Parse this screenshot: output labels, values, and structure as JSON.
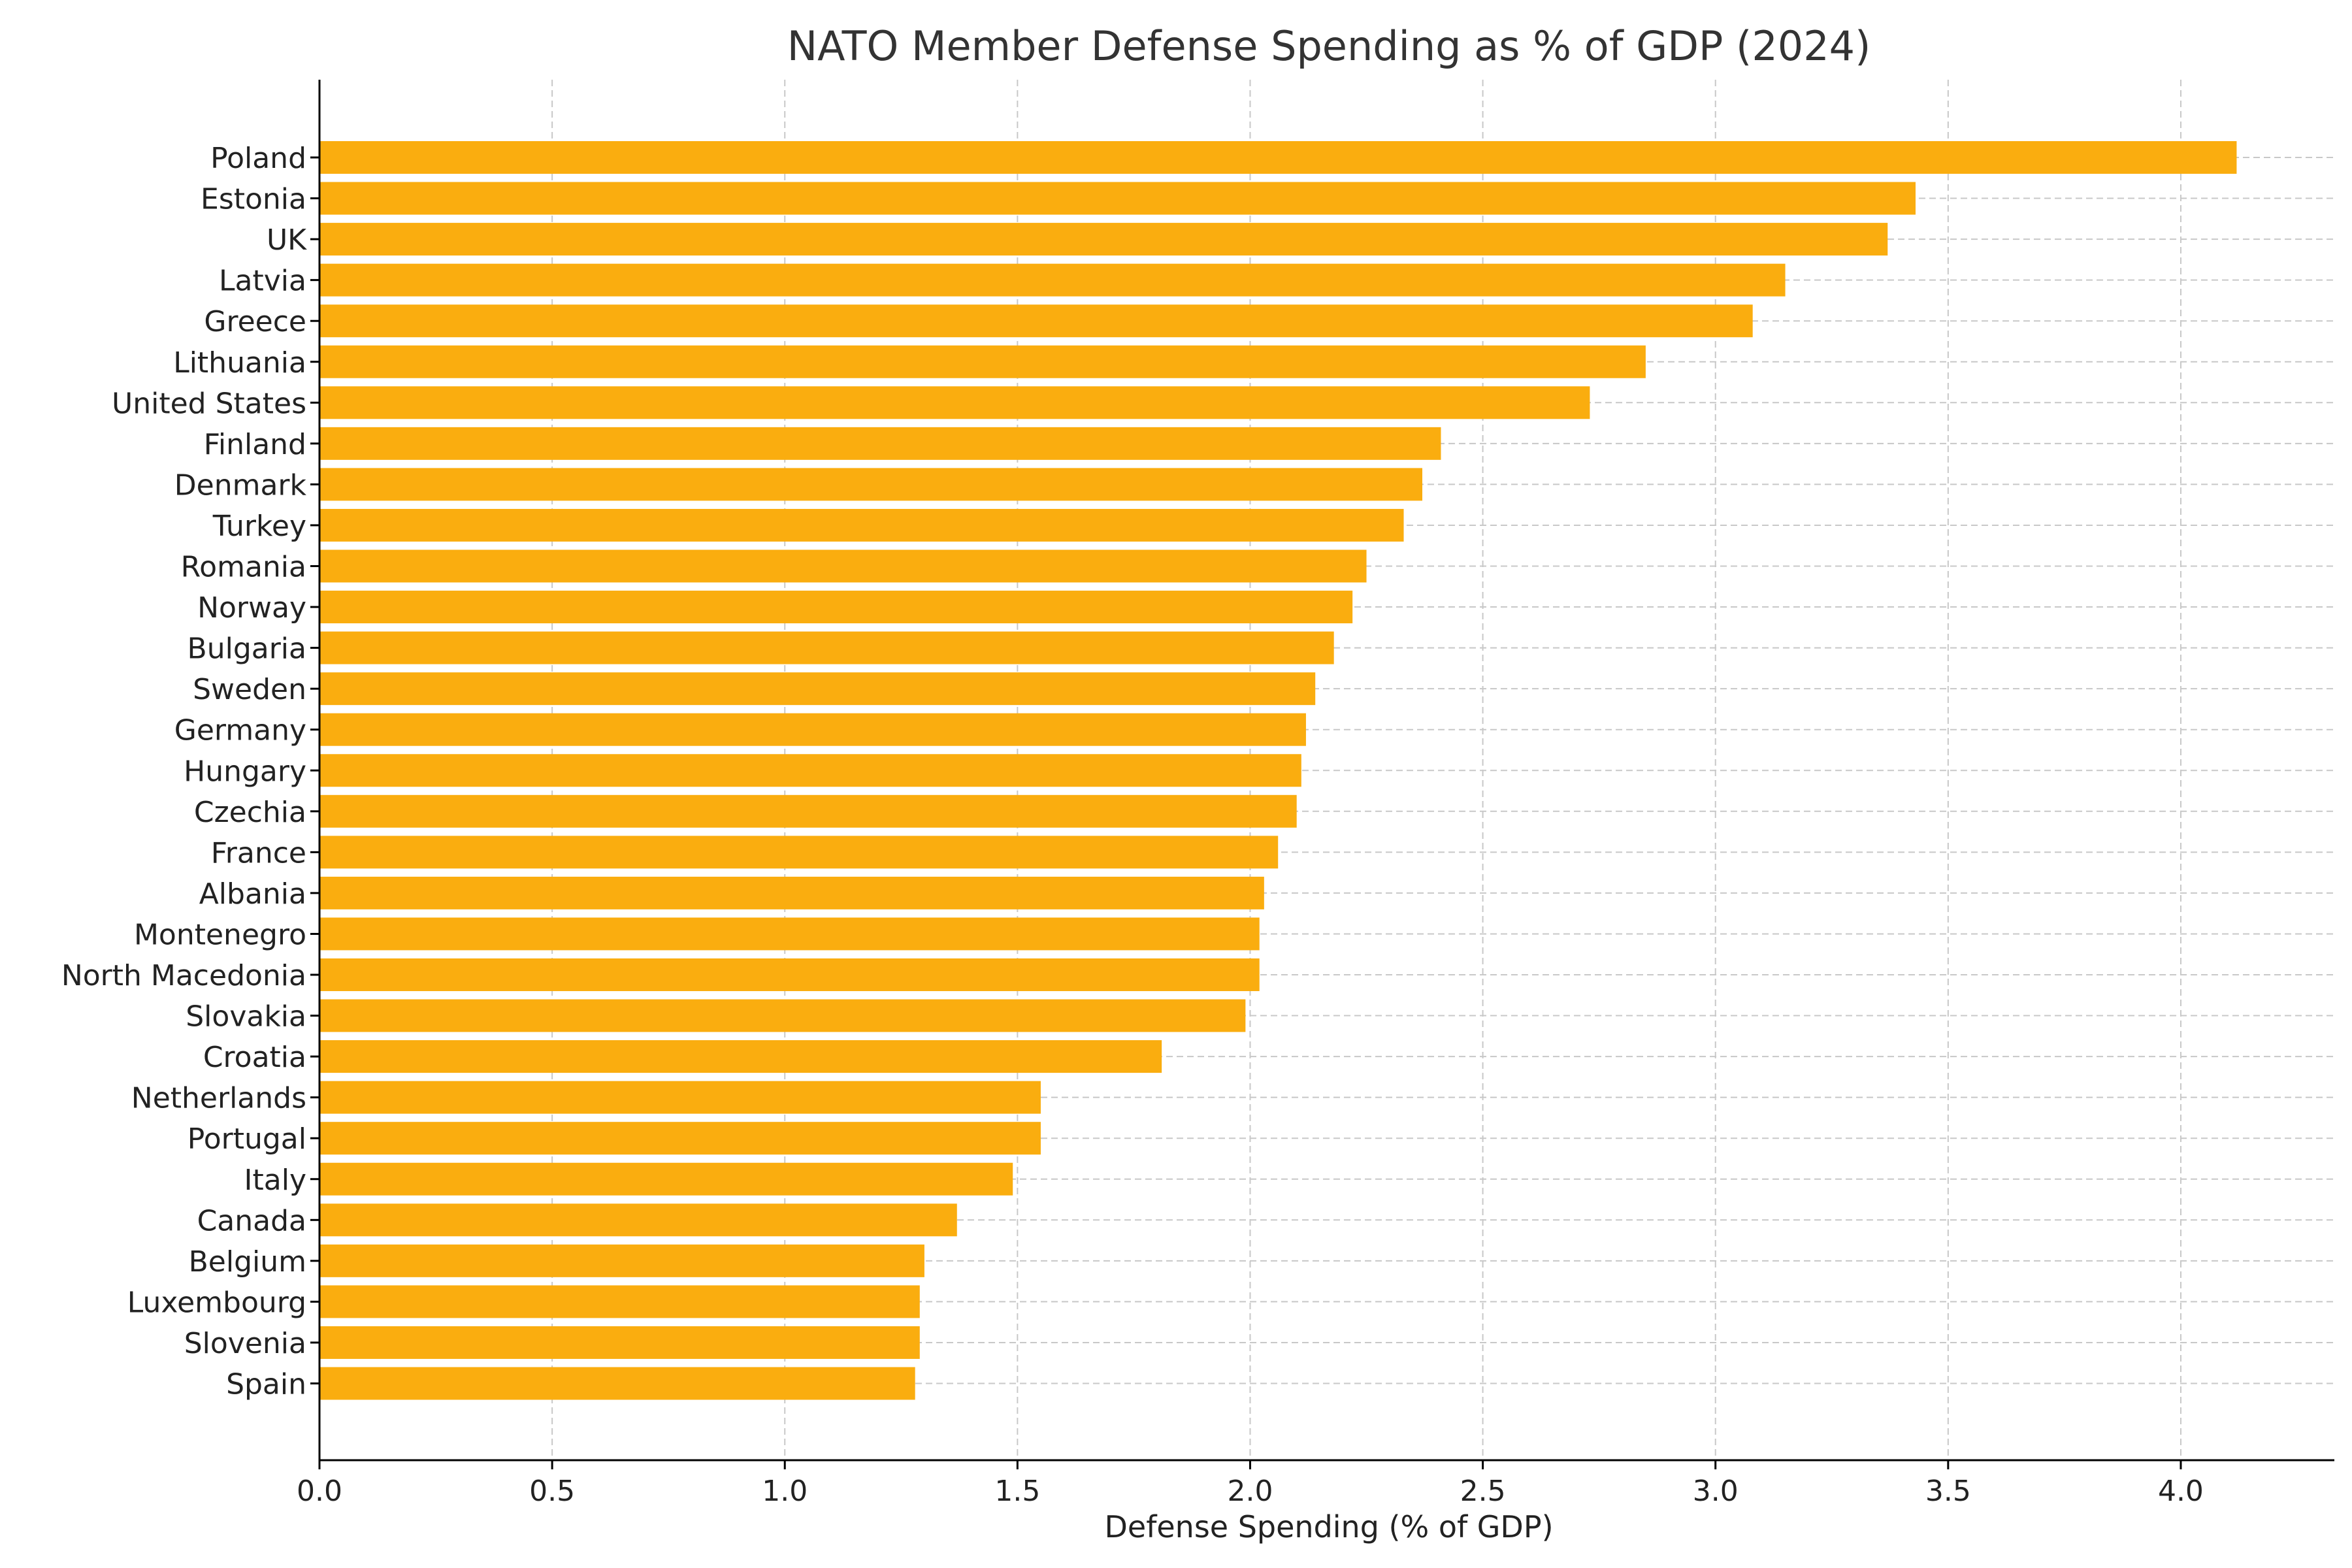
{
  "chart_data": {
    "type": "bar",
    "orientation": "horizontal",
    "title": "NATO Member Defense Spending as % of GDP (2024)",
    "xlabel": "Defense Spending (% of GDP)",
    "ylabel": "",
    "xlim": [
      0,
      4.33
    ],
    "xticks": [
      "0.0",
      "0.5",
      "1.0",
      "1.5",
      "2.0",
      "2.5",
      "3.0",
      "3.5",
      "4.0"
    ],
    "grid": true,
    "bar_color": "#FAAD0F",
    "categories": [
      "Poland",
      "Estonia",
      "UK",
      "Latvia",
      "Greece",
      "Lithuania",
      "United States",
      "Finland",
      "Denmark",
      "Turkey",
      "Romania",
      "Norway",
      "Bulgaria",
      "Sweden",
      "Germany",
      "Hungary",
      "Czechia",
      "France",
      "Albania",
      "Montenegro",
      "North Macedonia",
      "Slovakia",
      "Croatia",
      "Netherlands",
      "Portugal",
      "Italy",
      "Canada",
      "Belgium",
      "Luxembourg",
      "Slovenia",
      "Spain"
    ],
    "values": [
      4.12,
      3.43,
      3.37,
      3.15,
      3.08,
      2.85,
      2.73,
      2.41,
      2.37,
      2.33,
      2.25,
      2.22,
      2.18,
      2.14,
      2.12,
      2.11,
      2.1,
      2.06,
      2.03,
      2.02,
      2.02,
      1.99,
      1.81,
      1.55,
      1.55,
      1.49,
      1.37,
      1.3,
      1.29,
      1.29,
      1.28
    ]
  }
}
